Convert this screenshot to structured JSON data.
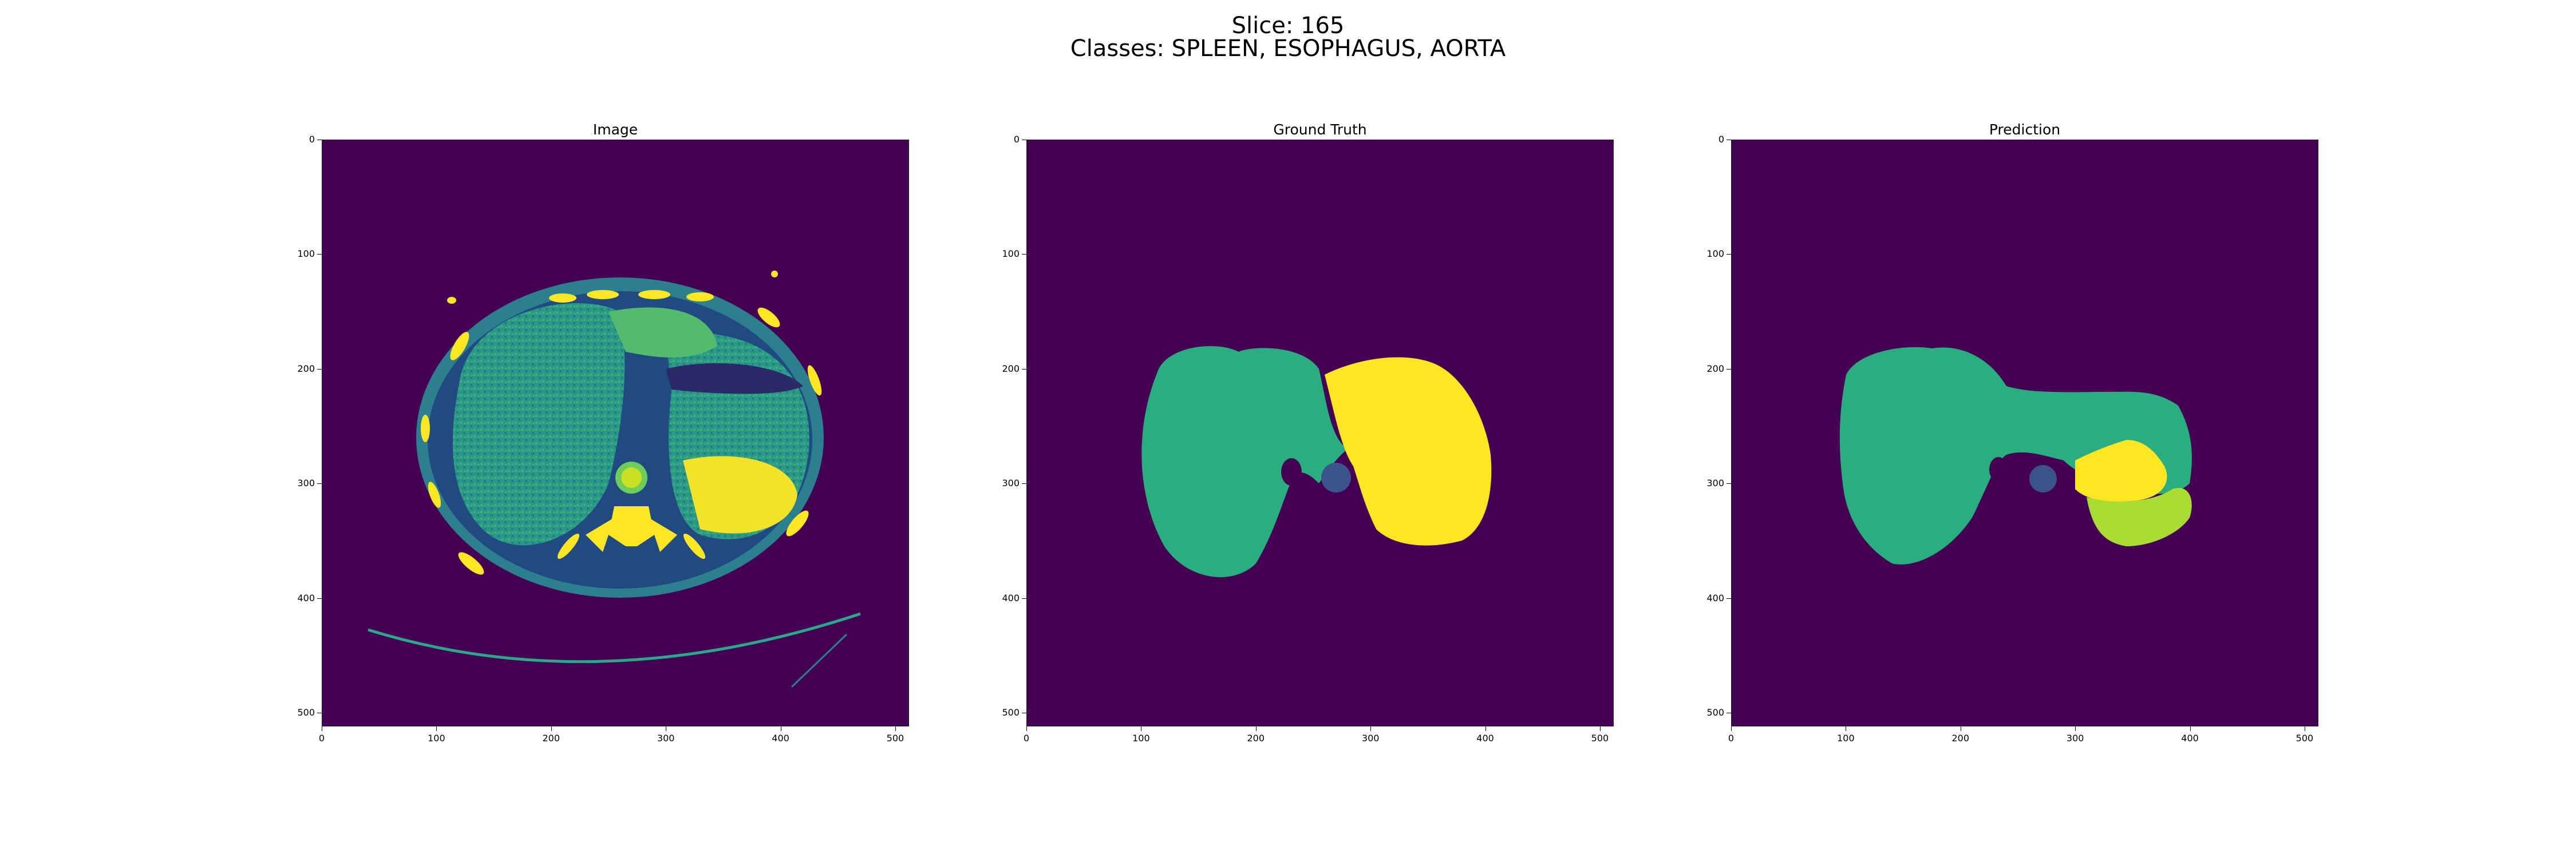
{
  "figure": {
    "title_line1": "Slice: 165",
    "title_line2": "Classes: SPLEEN, ESOPHAGUS, AORTA"
  },
  "panels": [
    {
      "title": "Image"
    },
    {
      "title": "Ground Truth"
    },
    {
      "title": "Prediction"
    }
  ],
  "axis_ticks": {
    "y": [
      "0",
      "100",
      "200",
      "300",
      "400",
      "500"
    ],
    "x": [
      "0",
      "100",
      "200",
      "300",
      "400",
      "500"
    ]
  },
  "colors": {
    "background": "#440154",
    "class_green": "#2aae7f",
    "class_yellow": "#fde725",
    "class_lime": "#aadc32",
    "class_purple": "#3b528b",
    "ct_mid": "#2a9a86"
  }
}
